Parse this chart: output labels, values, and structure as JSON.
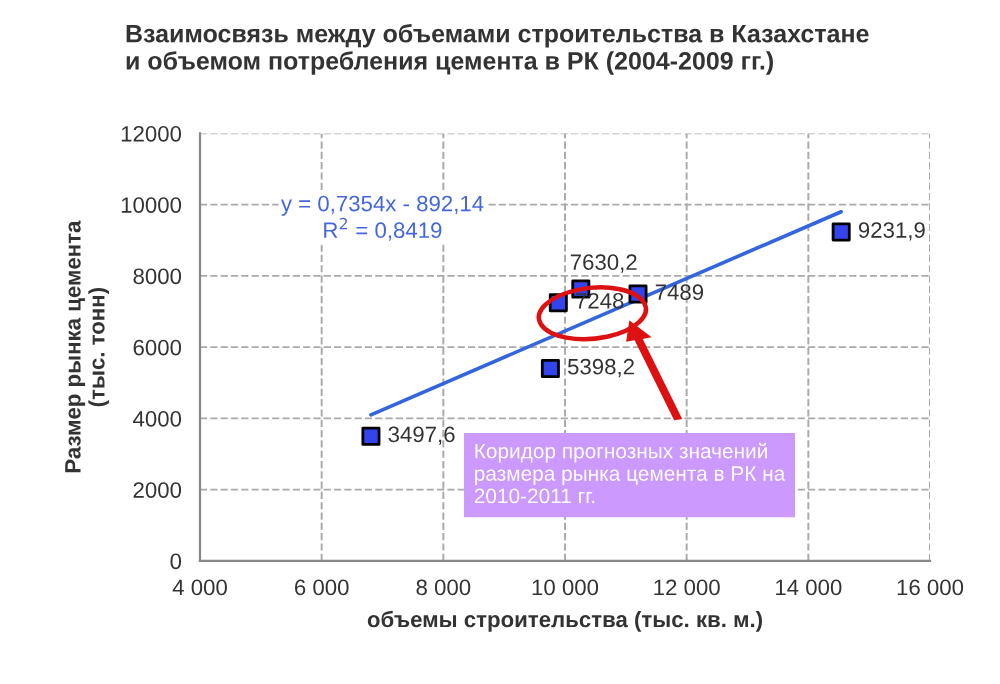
{
  "chart_data": {
    "type": "scatter",
    "title": "Взаимосвязь между объемами строительства в Казахстане\nи объемом потребления цемента в РК (2004-2009 гг.)",
    "xlabel": "объемы строительства (тыс. кв. м.)",
    "ylabel": "Размер рынка цемента\n(тыс. тонн)",
    "series": [
      {
        "color": "#3344ee",
        "marker": "square",
        "x": [
          6810,
          9760,
          9890,
          10260,
          11200,
          14540
        ],
        "values": [
          3497.6,
          5398.2,
          7248,
          7630.2,
          7489,
          9231.9
        ],
        "value_labels": [
          "3497,6",
          "5398,2",
          "7248",
          "7630,2",
          "7489",
          "9231,9"
        ]
      },
      {
        "type": "line",
        "color": "#3366dd",
        "x": [
          6810,
          14540
        ],
        "values": [
          4100,
          9800
        ]
      }
    ],
    "xlim": [
      4000,
      16000
    ],
    "xticks": [
      {
        "value": 4000,
        "label": "4 000"
      },
      {
        "value": 6000,
        "label": "6 000"
      },
      {
        "value": 8000,
        "label": "8 000"
      },
      {
        "value": 10000,
        "label": "10 000"
      },
      {
        "value": 12000,
        "label": "12 000"
      },
      {
        "value": 14000,
        "label": "14 000"
      },
      {
        "value": 16000,
        "label": "16 000"
      }
    ],
    "ylim": [
      0,
      12000
    ],
    "yticks": [
      0,
      2000,
      4000,
      6000,
      8000,
      10000,
      12000
    ],
    "grid": true,
    "annotations": [
      "y = 0,7354x - 892,14\nR$^{2}$ = 0,8419",
      "Коридор прогнозных значений\nразмера рынка цемента в РК на\n2010-2011 гг."
    ]
  }
}
